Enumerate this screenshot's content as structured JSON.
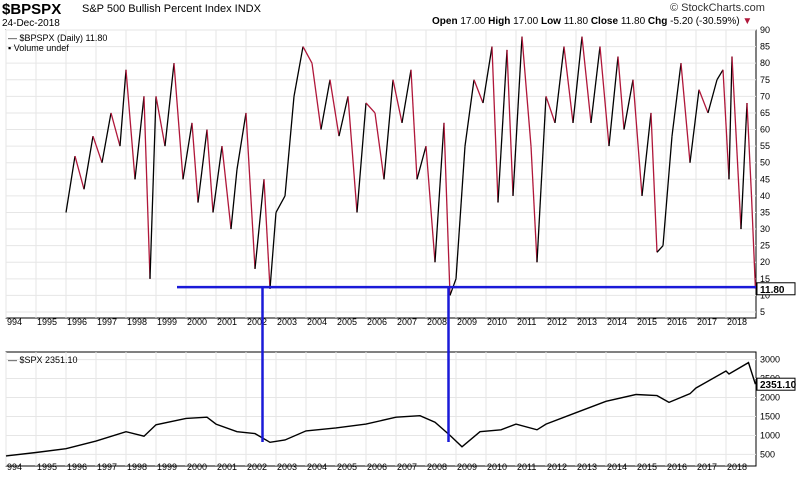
{
  "header": {
    "symbol": "$BPSPX",
    "description": "S&P 500 Bullish Percent Index INDX",
    "date": "24-Dec-2018",
    "open_label": "Open",
    "open": "17.00",
    "high_label": "High",
    "high": "17.00",
    "low_label": "Low",
    "low": "11.80",
    "close_label": "Close",
    "close": "11.80",
    "chg_label": "Chg",
    "chg": "-5.20 (-30.59%)",
    "brand": "© StockCharts.com"
  },
  "chart_data": [
    {
      "type": "line",
      "legend": "$BPSPX (Daily) 11.80",
      "legend2": "Volume undef",
      "last_value_label": "11.80",
      "y_ticks": [
        "90",
        "85",
        "80",
        "75",
        "70",
        "65",
        "60",
        "55",
        "50",
        "45",
        "40",
        "35",
        "30",
        "25",
        "20",
        "15",
        "10",
        "5"
      ],
      "x_ticks": [
        "994",
        "1995",
        "1996",
        "1997",
        "1998",
        "1999",
        "2000",
        "2001",
        "2002",
        "2003",
        "2004",
        "2005",
        "2006",
        "2007",
        "2008",
        "2009",
        "2010",
        "2011",
        "2012",
        "2013",
        "2014",
        "2015",
        "2016",
        "2017",
        "2018"
      ],
      "ylim": [
        5,
        90
      ],
      "x": [
        1996.0,
        1996.3,
        1996.6,
        1996.9,
        1997.2,
        1997.5,
        1997.8,
        1998.0,
        1998.3,
        1998.6,
        1998.8,
        1999.0,
        1999.3,
        1999.6,
        1999.9,
        2000.2,
        2000.4,
        2000.7,
        2000.9,
        2001.2,
        2001.5,
        2001.7,
        2002.0,
        2002.3,
        2002.6,
        2002.8,
        2003.0,
        2003.3,
        2003.6,
        2003.9,
        2004.2,
        2004.5,
        2004.8,
        2005.1,
        2005.4,
        2005.7,
        2006.0,
        2006.3,
        2006.6,
        2006.9,
        2007.2,
        2007.5,
        2007.7,
        2008.0,
        2008.3,
        2008.6,
        2008.8,
        2009.0,
        2009.3,
        2009.6,
        2009.9,
        2010.2,
        2010.4,
        2010.7,
        2010.9,
        2011.2,
        2011.5,
        2011.7,
        2012.0,
        2012.3,
        2012.6,
        2012.9,
        2013.2,
        2013.5,
        2013.8,
        2014.1,
        2014.4,
        2014.6,
        2014.9,
        2015.2,
        2015.5,
        2015.7,
        2015.9,
        2016.2,
        2016.5,
        2016.8,
        2017.1,
        2017.4,
        2017.7,
        2017.9,
        2018.1,
        2018.2,
        2018.5,
        2018.7,
        2018.85,
        2018.98
      ],
      "values": [
        35,
        52,
        42,
        58,
        50,
        65,
        55,
        78,
        45,
        70,
        15,
        70,
        55,
        80,
        45,
        62,
        38,
        60,
        35,
        55,
        30,
        48,
        65,
        18,
        45,
        12,
        35,
        40,
        70,
        85,
        80,
        60,
        75,
        58,
        70,
        35,
        68,
        65,
        45,
        75,
        62,
        78,
        45,
        55,
        20,
        62,
        10,
        15,
        55,
        75,
        68,
        85,
        38,
        84,
        40,
        88,
        55,
        20,
        70,
        62,
        85,
        62,
        88,
        62,
        85,
        55,
        82,
        60,
        75,
        40,
        65,
        23,
        25,
        58,
        80,
        50,
        72,
        65,
        75,
        78,
        45,
        82,
        30,
        68,
        40,
        12
      ]
    },
    {
      "type": "line",
      "legend": "$SPX 2351.10",
      "last_value_label": "2351.10",
      "y_ticks": [
        "3000",
        "2500",
        "2000",
        "1500",
        "1000",
        "500"
      ],
      "x_ticks": [
        "994",
        "1995",
        "1996",
        "1997",
        "1998",
        "1999",
        "2000",
        "2001",
        "2002",
        "2003",
        "2004",
        "2005",
        "2006",
        "2007",
        "2008",
        "2009",
        "2010",
        "2011",
        "2012",
        "2013",
        "2014",
        "2015",
        "2016",
        "2017",
        "2018"
      ],
      "ylim": [
        300,
        3200
      ],
      "x": [
        1994.0,
        1995.0,
        1996.0,
        1997.0,
        1998.0,
        1998.6,
        1999.0,
        2000.0,
        2000.7,
        2001.0,
        2001.7,
        2002.3,
        2002.8,
        2003.3,
        2004.0,
        2005.0,
        2006.0,
        2007.0,
        2007.8,
        2008.3,
        2008.8,
        2009.2,
        2009.8,
        2010.5,
        2011.0,
        2011.7,
        2012.0,
        2013.0,
        2014.0,
        2015.0,
        2015.7,
        2016.1,
        2016.8,
        2017.0,
        2018.0,
        2018.1,
        2018.75,
        2018.98
      ],
      "values": [
        460,
        550,
        650,
        850,
        1100,
        980,
        1280,
        1450,
        1480,
        1300,
        1100,
        1050,
        820,
        880,
        1120,
        1200,
        1300,
        1480,
        1520,
        1350,
        1000,
        700,
        1100,
        1150,
        1300,
        1150,
        1300,
        1600,
        1900,
        2080,
        2050,
        1870,
        2100,
        2250,
        2700,
        2620,
        2920,
        2351
      ]
    }
  ],
  "annotations": {
    "baseline_value": 12.5,
    "vertical_markers": [
      2002.55,
      2008.75
    ]
  },
  "colors": {
    "bp_line_up": "#000000",
    "bp_line_down": "#b0173a",
    "marker": "#1a1ad8",
    "axis_box": "#000000",
    "grid": "#e6e6e6"
  }
}
